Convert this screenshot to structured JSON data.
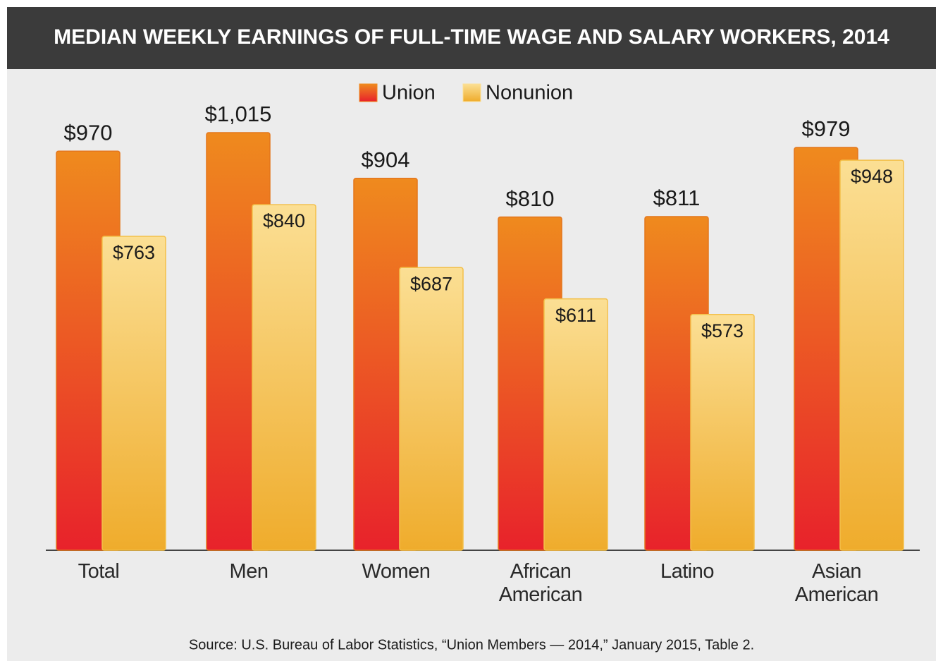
{
  "chart_data": {
    "type": "bar",
    "title": "MEDIAN WEEKLY EARNINGS OF FULL-TIME WAGE AND SALARY WORKERS, 2014",
    "categories": [
      "Total",
      "Men",
      "Women",
      "African American",
      "Latino",
      "Asian American"
    ],
    "series": [
      {
        "name": "Union",
        "color": "#ef8a1e",
        "values": [
          970,
          1015,
          904,
          810,
          811,
          979
        ],
        "value_labels": [
          "$970",
          "$1,015",
          "$904",
          "$810",
          "$811",
          "$979"
        ]
      },
      {
        "name": "Nonunion",
        "color": "#fbdf94",
        "values": [
          763,
          840,
          687,
          611,
          573,
          948
        ],
        "value_labels": [
          "$763",
          "$840",
          "$687",
          "$611",
          "$573",
          "$948"
        ]
      }
    ],
    "legend": "top",
    "source": "Source: U.S. Bureau of Labor Statistics, “Union Members — 2014,” January 2015, Table 2."
  }
}
